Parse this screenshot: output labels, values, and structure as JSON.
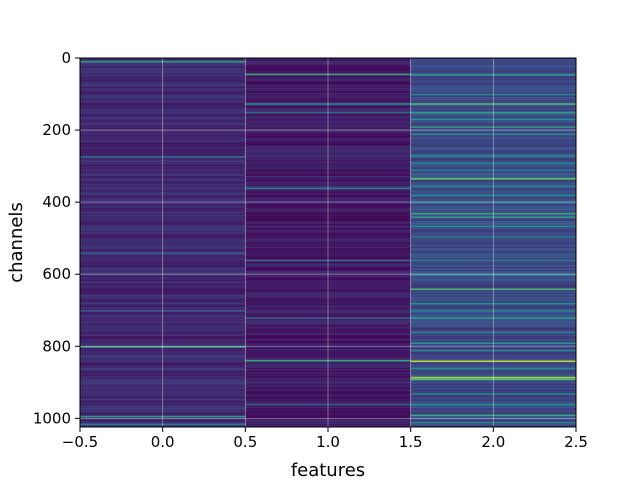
{
  "chart_data": {
    "type": "heatmap",
    "title": "",
    "xlabel": "features",
    "ylabel": "channels",
    "xlim": [
      -0.5,
      2.5
    ],
    "ylim": [
      1024,
      0
    ],
    "y_inverted": true,
    "xticks": [
      -0.5,
      0.0,
      0.5,
      1.0,
      1.5,
      2.0,
      2.5
    ],
    "xtick_labels": [
      "−0.5",
      "0.0",
      "0.5",
      "1.0",
      "1.5",
      "2.0",
      "2.5"
    ],
    "yticks": [
      0,
      200,
      400,
      600,
      800,
      1000
    ],
    "ytick_labels": [
      "0",
      "200",
      "400",
      "600",
      "800",
      "1000"
    ],
    "grid": true,
    "colormap": "viridis",
    "n_channels": 1024,
    "columns": [
      0,
      1,
      2
    ],
    "background_levels": [
      0.12,
      0.08,
      0.22
    ],
    "highlight_rows": [
      [
        [
          8,
          0.55
        ],
        [
          273,
          0.35
        ],
        [
          540,
          0.3
        ],
        [
          700,
          0.3
        ],
        [
          800,
          0.6
        ],
        [
          993,
          0.55
        ],
        [
          1015,
          0.4
        ]
      ],
      [
        [
          44,
          0.6
        ],
        [
          126,
          0.5
        ],
        [
          150,
          0.35
        ],
        [
          360,
          0.4
        ],
        [
          560,
          0.35
        ],
        [
          720,
          0.3
        ],
        [
          838,
          0.6
        ],
        [
          960,
          0.3
        ]
      ],
      [
        [
          45,
          0.55
        ],
        [
          100,
          0.45
        ],
        [
          126,
          0.7
        ],
        [
          150,
          0.55
        ],
        [
          168,
          0.5
        ],
        [
          190,
          0.55
        ],
        [
          210,
          0.45
        ],
        [
          270,
          0.5
        ],
        [
          290,
          0.45
        ],
        [
          310,
          0.4
        ],
        [
          333,
          0.75
        ],
        [
          355,
          0.45
        ],
        [
          380,
          0.5
        ],
        [
          400,
          0.4
        ],
        [
          430,
          0.6
        ],
        [
          440,
          0.55
        ],
        [
          465,
          0.45
        ],
        [
          495,
          0.4
        ],
        [
          560,
          0.4
        ],
        [
          600,
          0.45
        ],
        [
          640,
          0.65
        ],
        [
          680,
          0.5
        ],
        [
          700,
          0.45
        ],
        [
          720,
          0.55
        ],
        [
          760,
          0.45
        ],
        [
          790,
          0.5
        ],
        [
          810,
          0.45
        ],
        [
          840,
          0.9
        ],
        [
          860,
          0.5
        ],
        [
          885,
          0.85
        ],
        [
          890,
          0.7
        ],
        [
          930,
          0.45
        ],
        [
          960,
          0.5
        ],
        [
          990,
          0.6
        ],
        [
          1010,
          0.45
        ]
      ]
    ]
  }
}
